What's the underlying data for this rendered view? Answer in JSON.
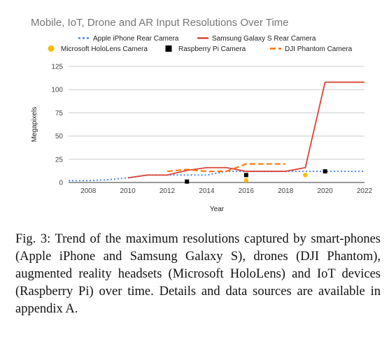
{
  "chart_data": {
    "type": "line",
    "title": "Mobile, IoT, Drone and AR Input Resolutions Over Time",
    "xlabel": "Year",
    "ylabel": "Megapixels",
    "xlim": [
      2007,
      2022
    ],
    "ylim": [
      0,
      125
    ],
    "xticks": [
      2008,
      2010,
      2012,
      2014,
      2016,
      2018,
      2020,
      2022
    ],
    "yticks": [
      0,
      25,
      50,
      75,
      100,
      125
    ],
    "grid": "horizontal",
    "legend_position": "top",
    "series": [
      {
        "name": "Apple iPhone Rear Camera",
        "style": "dotted",
        "color": "#4a86e8",
        "x": [
          2007,
          2008,
          2009,
          2010,
          2011,
          2012,
          2013,
          2014,
          2015,
          2016,
          2017,
          2018,
          2019,
          2020,
          2021,
          2022
        ],
        "y": [
          2,
          2,
          3,
          5,
          8,
          8,
          8,
          8,
          12,
          12,
          12,
          12,
          12,
          12,
          12,
          12
        ]
      },
      {
        "name": "Samsung Galaxy S Rear Camera",
        "style": "solid",
        "color": "#db4437",
        "x": [
          2010,
          2011,
          2012,
          2013,
          2014,
          2015,
          2016,
          2017,
          2018,
          2019,
          2020,
          2021,
          2022
        ],
        "y": [
          5,
          8,
          8,
          13,
          16,
          16,
          12,
          12,
          12,
          16,
          108,
          108,
          108
        ]
      },
      {
        "name": "Microsoft HoloLens Camera",
        "style": "marker-circle",
        "color": "#fbbc04",
        "x": [
          2016,
          2019
        ],
        "y": [
          2.4,
          8
        ]
      },
      {
        "name": "Raspberry Pi Camera",
        "style": "marker-square",
        "color": "#000000",
        "x": [
          2013,
          2016,
          2020
        ],
        "y": [
          1,
          8,
          12
        ]
      },
      {
        "name": "DJI Phantom Camera",
        "style": "dashed",
        "color": "#ff6d01",
        "x": [
          2012,
          2013,
          2014,
          2015,
          2016,
          2017,
          2018
        ],
        "y": [
          12,
          14,
          12,
          12,
          20,
          20,
          20
        ]
      }
    ]
  },
  "caption": "Fig. 3: Trend of the maximum resolutions captured by smart-phones (Apple iPhone and Samsung Galaxy S), drones (DJI Phantom), augmented reality headsets (Microsoft HoloLens) and IoT devices (Raspberry Pi) over time. Details and data sources are available in appendix A."
}
